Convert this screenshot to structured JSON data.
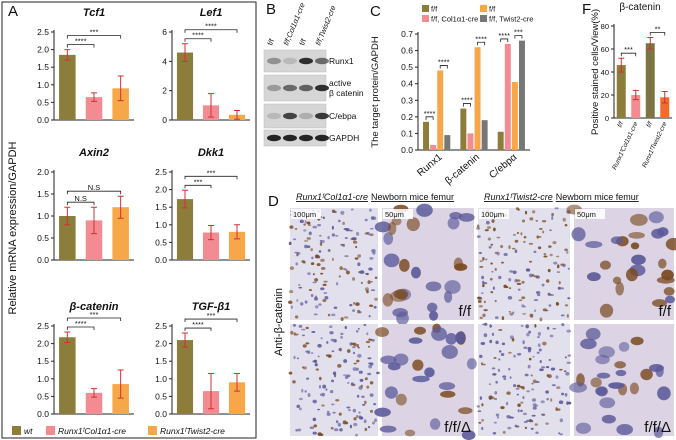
{
  "panel_labels": [
    "A",
    "B",
    "C",
    "D",
    "F"
  ],
  "figure_a": {
    "ylabel": "Relative mRNA expression/GAPDH",
    "legend": [
      {
        "name": "wt",
        "color": "#8c7d3b"
      },
      {
        "name": "Runx1ᶠCol1α1-cre",
        "color": "#f28b92"
      },
      {
        "name": "Runx1ᶠTwist2-cre",
        "color": "#f7a648"
      }
    ]
  },
  "chart_data": [
    {
      "type": "bar",
      "title": "Tcf1",
      "values": [
        1.85,
        0.65,
        0.9
      ],
      "errors": [
        0.15,
        0.12,
        0.35
      ],
      "ylim": [
        0,
        2.5
      ],
      "yticks": [
        {
          "value": 0,
          "label": "0.0"
        },
        0.5,
        {
          "value": 1,
          "label": "1.0"
        },
        1.5,
        {
          "value": 2,
          "label": "2.0"
        },
        2.5
      ],
      "annotations": [
        "****",
        "***"
      ]
    },
    {
      "type": "bar",
      "title": "Lef1",
      "values": [
        4.6,
        1.0,
        0.35
      ],
      "errors": [
        0.6,
        0.8,
        0.3
      ],
      "ylim": [
        0,
        6
      ],
      "yticks": [
        0,
        2,
        4,
        6
      ],
      "annotations": [
        "****",
        "****"
      ]
    },
    {
      "type": "bar",
      "title": "Axin2",
      "values": [
        1.0,
        0.9,
        1.2
      ],
      "errors": [
        0.2,
        0.3,
        0.25
      ],
      "ylim": [
        0,
        2
      ],
      "yticks": [
        {
          "value": 0,
          "label": "0.0"
        },
        0.5,
        {
          "value": 1,
          "label": "1.0"
        },
        1.5,
        {
          "value": 2,
          "label": "2.0"
        }
      ],
      "annotations": [
        "N.S",
        "N.S"
      ]
    },
    {
      "type": "bar",
      "title": "Dkk1",
      "values": [
        1.73,
        0.78,
        0.8
      ],
      "errors": [
        0.25,
        0.2,
        0.2
      ],
      "ylim": [
        0,
        2.5
      ],
      "yticks": [
        {
          "value": 0,
          "label": "0.0"
        },
        0.5,
        {
          "value": 1,
          "label": "1.0"
        },
        1.5,
        {
          "value": 2,
          "label": "2.0"
        },
        2.5
      ],
      "annotations": [
        "***",
        "***"
      ]
    },
    {
      "type": "bar",
      "title": "β-catenin",
      "values": [
        2.18,
        0.6,
        0.85
      ],
      "errors": [
        0.15,
        0.12,
        0.4
      ],
      "ylim": [
        0,
        2.5
      ],
      "yticks": [
        {
          "value": 0,
          "label": "0.0"
        },
        0.5,
        {
          "value": 1,
          "label": "1.0"
        },
        1.5,
        {
          "value": 2,
          "label": "2.0"
        },
        2.5
      ],
      "annotations": [
        "****",
        "***"
      ]
    },
    {
      "type": "bar",
      "title": "TGF-β1",
      "values": [
        2.1,
        0.65,
        0.9
      ],
      "errors": [
        0.2,
        0.5,
        0.25
      ],
      "ylim": [
        0,
        2.5
      ],
      "yticks": [
        {
          "value": 0,
          "label": "0.0"
        },
        0.5,
        {
          "value": 1,
          "label": "1.0"
        },
        1.5,
        {
          "value": 2,
          "label": "2.0"
        },
        2.5
      ],
      "annotations": [
        "****",
        "***"
      ]
    },
    {
      "type": "bar",
      "ylabel": "The target protein/GAPDH",
      "categories": [
        "Runx1",
        "β-catenin",
        "C/ebpα"
      ],
      "series": [
        {
          "name": "f/f",
          "color": "#8c7d3b",
          "values": [
            0.17,
            0.25,
            0.11
          ]
        },
        {
          "name": "f/f, Col1α1-cre",
          "color": "#f28b92",
          "values": [
            0.03,
            0.1,
            0.64
          ]
        },
        {
          "name": "f/f",
          "color": "#f7a648",
          "values": [
            0.48,
            0.62,
            0.41
          ]
        },
        {
          "name": "f/f, Twist2-cre",
          "color": "#777777",
          "values": [
            0.09,
            0.18,
            0.66
          ]
        }
      ],
      "ylim": [
        0,
        0.7
      ],
      "yticks": [
        {
          "value": 0,
          "label": "0.0"
        },
        0.1,
        0.2,
        0.3,
        0.4,
        0.5,
        0.6,
        0.7
      ],
      "annotations": [
        [
          "****",
          "****"
        ],
        [
          "****",
          "****"
        ],
        [
          "****",
          "***"
        ]
      ]
    },
    {
      "type": "bar",
      "title": "β-catenin",
      "ylabel": "Positive stained cells/View(%)",
      "categories": [
        "f/f",
        "Runx1ᶠCol1α1-cre",
        "f/f",
        "Runx1ᶠTwist2-cre"
      ],
      "values": [
        46,
        20,
        65,
        18
      ],
      "errors": [
        6,
        4,
        5,
        5
      ],
      "colors": [
        "#8c7d3b",
        "#f28b92",
        "#7d7444",
        "#f36b2a"
      ],
      "ylim": [
        0,
        80
      ],
      "yticks": [
        0,
        20,
        40,
        60,
        80
      ],
      "annotations": [
        "***",
        "**"
      ]
    }
  ],
  "blot": {
    "lanes": [
      "f/f",
      "f/f;Col1α1-cre",
      "f/f",
      "f/f;Twist2-cre"
    ],
    "rows": [
      [
        "Runx1"
      ],
      [
        "active",
        "β catenin"
      ],
      [
        "C/ebpa"
      ],
      [
        "GAPDH"
      ]
    ]
  },
  "histology": {
    "headers": [
      [
        "Runx1ᶠCol1α1-cre",
        "Newborn mice femur"
      ],
      [
        "Runx1ᶠTwist2-cre",
        "Newborn mice femur"
      ]
    ],
    "scales": [
      "100μm",
      "50μm"
    ],
    "genotypes": [
      "f/f",
      "f/f/Δ"
    ],
    "stain": "Anti-β-catenin"
  }
}
